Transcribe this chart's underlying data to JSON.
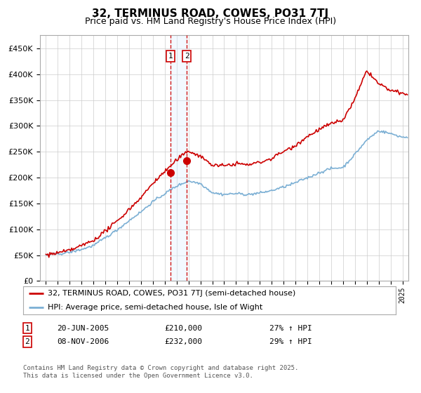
{
  "title": "32, TERMINUS ROAD, COWES, PO31 7TJ",
  "subtitle": "Price paid vs. HM Land Registry's House Price Index (HPI)",
  "legend_line1": "32, TERMINUS ROAD, COWES, PO31 7TJ (semi-detached house)",
  "legend_line2": "HPI: Average price, semi-detached house, Isle of Wight",
  "sale1_date": "20-JUN-2005",
  "sale1_price": 210000,
  "sale1_label": "27% ↑ HPI",
  "sale2_date": "08-NOV-2006",
  "sale2_price": 232000,
  "sale2_label": "29% ↑ HPI",
  "footer1": "Contains HM Land Registry data © Crown copyright and database right 2025.",
  "footer2": "This data is licensed under the Open Government Licence v3.0.",
  "sale1_x": 2005.47,
  "sale2_x": 2006.85,
  "hpi_color": "#7bafd4",
  "price_color": "#cc0000",
  "sale_marker_color": "#cc0000",
  "highlight_color": "#ddeeff",
  "ylim_min": 0,
  "ylim_max": 475000,
  "xlim_min": 1994.5,
  "xlim_max": 2025.5,
  "background_color": "#ffffff",
  "grid_color": "#cccccc",
  "hpi_key_years": [
    1995,
    1996,
    1997,
    1998,
    1999,
    2000,
    2001,
    2002,
    2003,
    2004,
    2005,
    2006,
    2007,
    2008,
    2009,
    2010,
    2011,
    2012,
    2013,
    2014,
    2015,
    2016,
    2017,
    2018,
    2019,
    2020,
    2021,
    2022,
    2023,
    2024,
    2025
  ],
  "hpi_key_vals": [
    50000,
    52000,
    56000,
    62000,
    70000,
    85000,
    100000,
    118000,
    135000,
    155000,
    170000,
    185000,
    195000,
    190000,
    172000,
    168000,
    170000,
    168000,
    170000,
    175000,
    182000,
    190000,
    200000,
    210000,
    218000,
    220000,
    245000,
    272000,
    290000,
    285000,
    278000
  ],
  "price_key_years": [
    1995,
    1996,
    1997,
    1998,
    1999,
    2000,
    2001,
    2002,
    2003,
    2004,
    2005,
    2006,
    2007,
    2008,
    2009,
    2010,
    2011,
    2012,
    2013,
    2014,
    2015,
    2016,
    2017,
    2018,
    2019,
    2020,
    2021,
    2022,
    2023,
    2024,
    2025
  ],
  "price_key_vals": [
    50000,
    54000,
    60000,
    68000,
    78000,
    96000,
    115000,
    138000,
    160000,
    188000,
    210000,
    232000,
    250000,
    238000,
    220000,
    218000,
    222000,
    220000,
    225000,
    232000,
    245000,
    258000,
    275000,
    288000,
    298000,
    305000,
    345000,
    400000,
    375000,
    362000,
    355000
  ]
}
